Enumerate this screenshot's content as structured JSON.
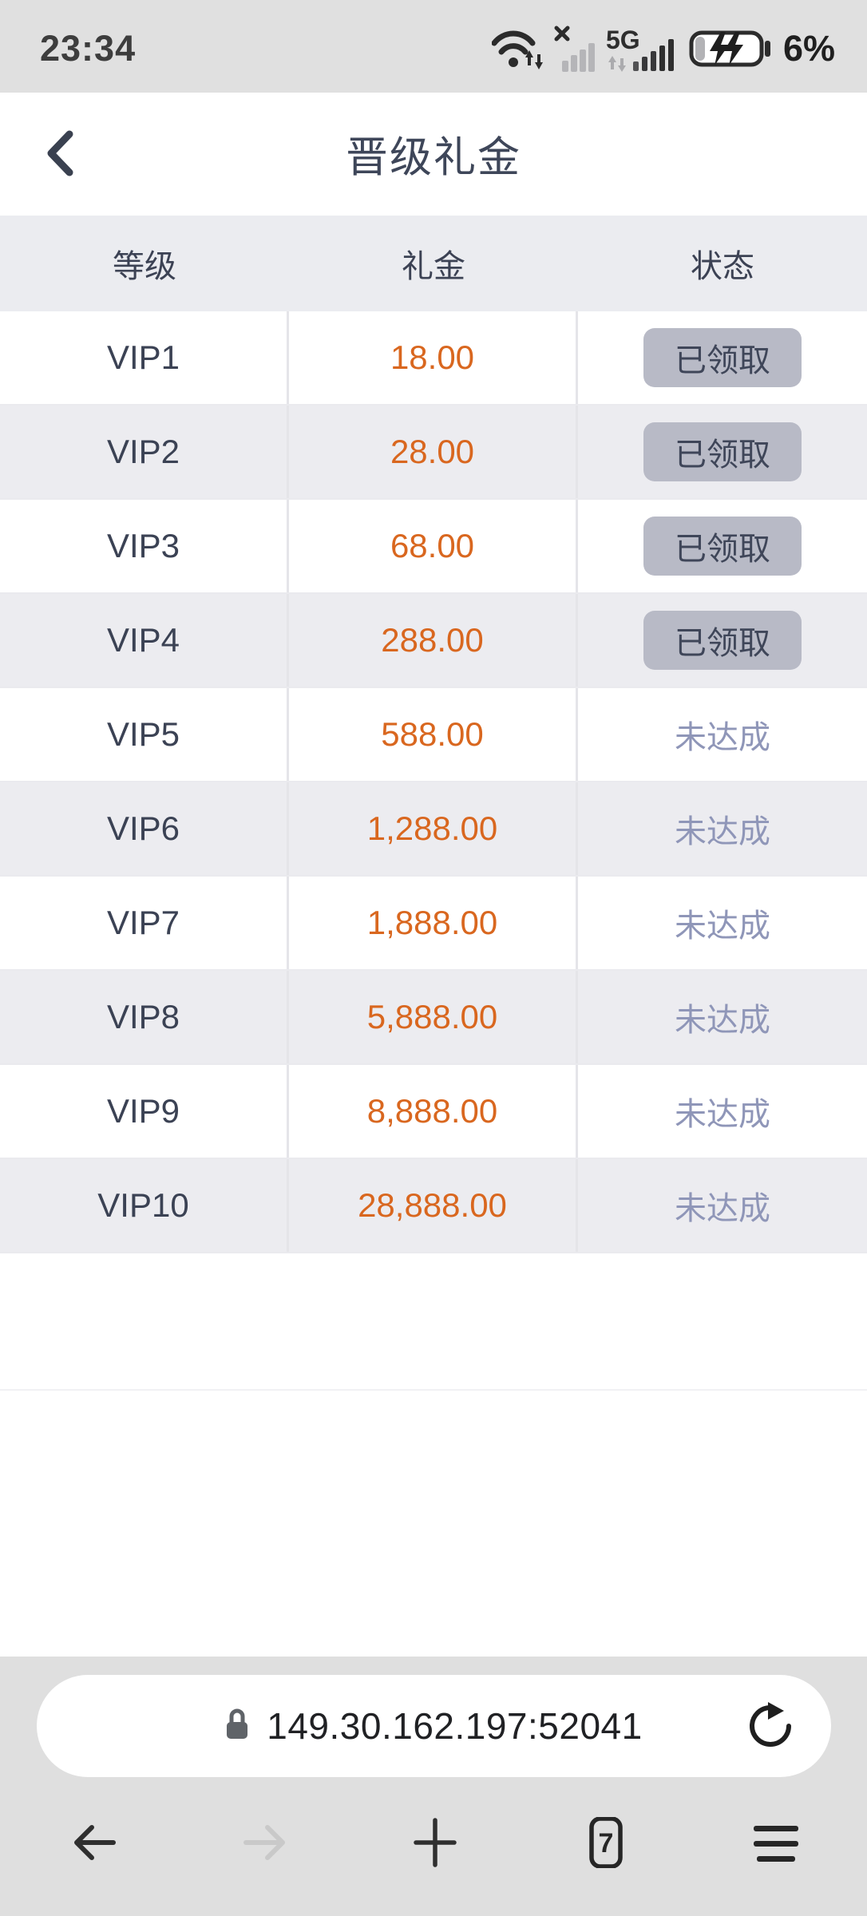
{
  "status_bar": {
    "time": "23:34",
    "network_label": "5G",
    "battery_percent": "6%"
  },
  "header": {
    "title": "晋级礼金"
  },
  "table": {
    "columns": [
      "等级",
      "礼金",
      "状态"
    ],
    "rows": [
      {
        "level": "VIP1",
        "amount": "18.00",
        "status": "已领取",
        "claimed": true
      },
      {
        "level": "VIP2",
        "amount": "28.00",
        "status": "已领取",
        "claimed": true
      },
      {
        "level": "VIP3",
        "amount": "68.00",
        "status": "已领取",
        "claimed": true
      },
      {
        "level": "VIP4",
        "amount": "288.00",
        "status": "已领取",
        "claimed": true
      },
      {
        "level": "VIP5",
        "amount": "588.00",
        "status": "未达成",
        "claimed": false
      },
      {
        "level": "VIP6",
        "amount": "1,288.00",
        "status": "未达成",
        "claimed": false
      },
      {
        "level": "VIP7",
        "amount": "1,888.00",
        "status": "未达成",
        "claimed": false
      },
      {
        "level": "VIP8",
        "amount": "5,888.00",
        "status": "未达成",
        "claimed": false
      },
      {
        "level": "VIP9",
        "amount": "8,888.00",
        "status": "未达成",
        "claimed": false
      },
      {
        "level": "VIP10",
        "amount": "28,888.00",
        "status": "未达成",
        "claimed": false
      }
    ]
  },
  "browser": {
    "url": "149.30.162.197:52041",
    "tab_count": "7"
  },
  "colors": {
    "amount_orange": "#d9671f",
    "claimed_button_bg": "#b8bac6",
    "claimed_button_text": "#3f4659",
    "pending_text": "#8f96b8",
    "title_text": "#3e4659",
    "status_bar_bg": "#e0e0e0",
    "bottom_bar_bg": "#dfdfdf"
  }
}
